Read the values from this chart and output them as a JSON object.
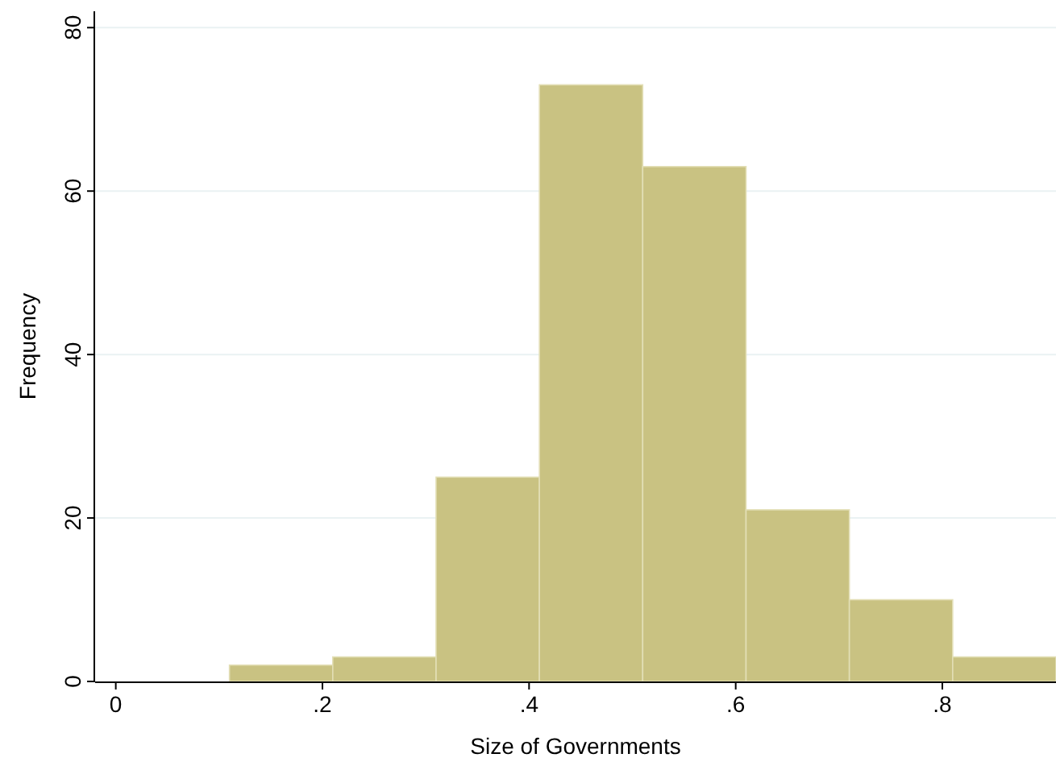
{
  "chart_data": {
    "type": "histogram",
    "xlabel": "Size of Governments",
    "ylabel": "Frequency",
    "bins": [
      0.11,
      0.21,
      0.31,
      0.41,
      0.51,
      0.61,
      0.71,
      0.81,
      0.91
    ],
    "values": [
      2,
      3,
      25,
      73,
      63,
      21,
      10,
      3
    ],
    "color": "#c9c282",
    "xlim": [
      -0.02,
      0.91
    ],
    "ylim": [
      0,
      82
    ],
    "xticks": [
      0,
      {
        "value": 0.2,
        "label": ".2"
      },
      {
        "value": 0.4,
        "label": ".4"
      },
      {
        "value": 0.6,
        "label": ".6"
      },
      {
        "value": 0.8,
        "label": ".8"
      }
    ],
    "yticks": [
      0,
      20,
      40,
      60,
      80
    ],
    "grid": "y"
  }
}
